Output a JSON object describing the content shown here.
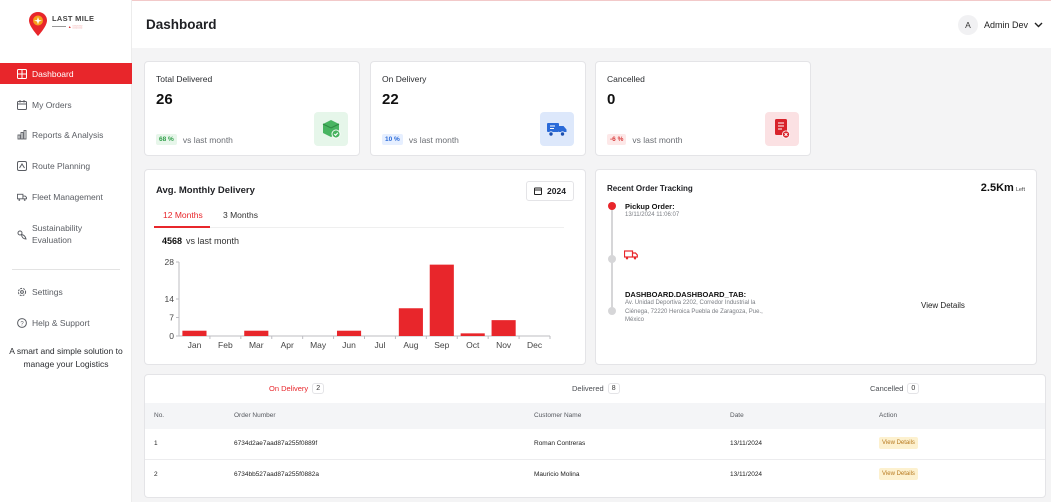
{
  "brand": {
    "name": "LAST MILE"
  },
  "sidebar": {
    "items": [
      {
        "label": "Dashboard"
      },
      {
        "label": "My Orders"
      },
      {
        "label": "Reports & Analysis"
      },
      {
        "label": "Route Planning"
      },
      {
        "label": "Fleet Management"
      },
      {
        "label": "Sustainability Evaluation"
      }
    ],
    "bottom": [
      {
        "label": "Settings"
      },
      {
        "label": "Help & Support"
      }
    ],
    "tagline": "A smart and simple solution to manage your Logistics"
  },
  "header": {
    "title": "Dashboard",
    "user_initial": "A",
    "user_name": "Admin Dev"
  },
  "stats": [
    {
      "title": "Total Delivered",
      "value": "26",
      "change": "68 %",
      "compare": "vs last month",
      "color": "#2f9e49"
    },
    {
      "title": "On Delivery",
      "value": "22",
      "change": "10 %",
      "compare": "vs last month",
      "color": "#2a6ad8"
    },
    {
      "title": "Cancelled",
      "value": "0",
      "change": "-6 %",
      "compare": "vs last month",
      "color": "#d83a3a"
    }
  ],
  "monthly": {
    "title": "Avg. Monthly Delivery",
    "year": "2024",
    "tabs": [
      "12 Months",
      "3 Months"
    ],
    "total": "4568",
    "compare": "vs last month"
  },
  "chart_data": {
    "type": "bar",
    "categories": [
      "Jan",
      "Feb",
      "Mar",
      "Apr",
      "May",
      "Jun",
      "Jul",
      "Aug",
      "Sep",
      "Oct",
      "Nov",
      "Dec"
    ],
    "values": [
      2,
      0,
      2,
      0,
      0,
      2,
      0,
      10.5,
      27,
      1,
      6,
      0
    ],
    "yticks": [
      0,
      7,
      14,
      28
    ],
    "ylim": [
      0,
      28
    ],
    "color": "#e8262b",
    "grid": false,
    "title": "",
    "xlabel": "",
    "ylabel": ""
  },
  "tracking": {
    "title": "Recent Order Tracking",
    "distance": "2.5Km",
    "distance_suffix": "Left",
    "pickup_label": "Pickup Order:",
    "pickup_time": "13/11/2024 11:06:07",
    "drop_label": "DASHBOARD.DASHBOARD_TAB:",
    "drop_address": "Av. Unidad Deportiva 2202, Corredor Industrial la Ciénega, 72220 Heroica Puebla de Zaragoza, Pue., México",
    "view_label": "View Details"
  },
  "orders": {
    "tabs": [
      {
        "label": "On Delivery",
        "count": "2"
      },
      {
        "label": "Delivered",
        "count": "8"
      },
      {
        "label": "Cancelled",
        "count": "0"
      }
    ],
    "columns": [
      "No.",
      "Order Number",
      "Customer Name",
      "Date",
      "Action"
    ],
    "rows": [
      {
        "no": "1",
        "order": "6734d2ae7aad87a255f0889f",
        "customer": "Roman Contreras",
        "date": "13/11/2024",
        "action": "View Details"
      },
      {
        "no": "2",
        "order": "6734bb527aad87a255f0882a",
        "customer": "Mauricio Molina",
        "date": "13/11/2024",
        "action": "View Details"
      }
    ]
  }
}
